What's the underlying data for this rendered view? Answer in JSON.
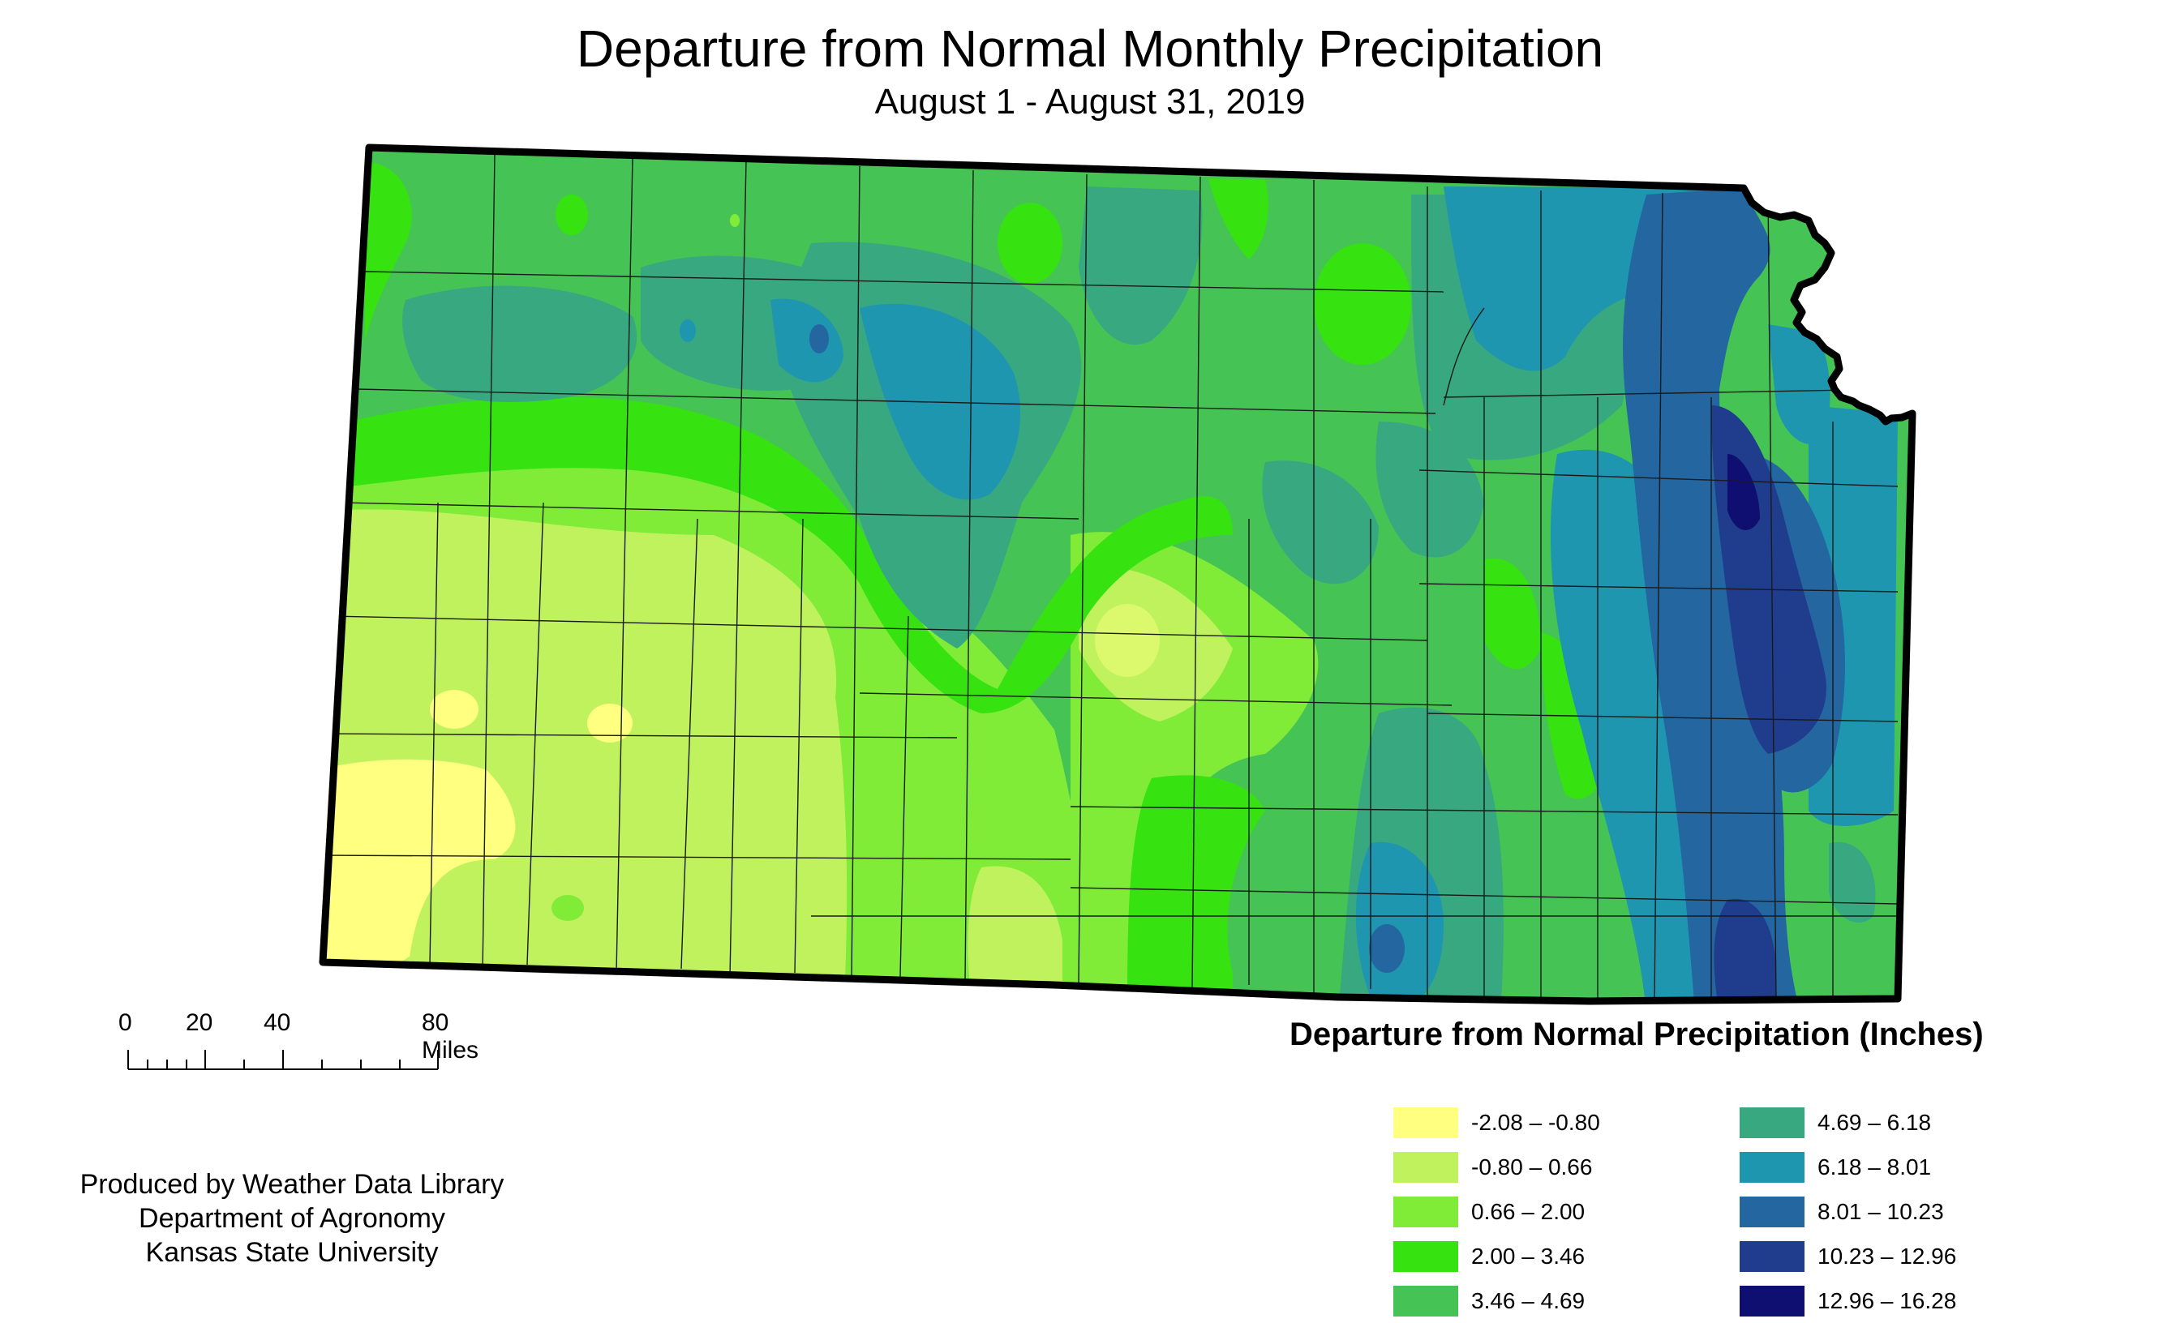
{
  "title": "Departure from Normal Monthly Precipitation",
  "subtitle": "August 1 - August 31, 2019",
  "legend": {
    "title": "Departure from Normal Precipitation (Inches)",
    "classes": [
      {
        "label": "-2.08 – -0.80",
        "color": "#ffff80"
      },
      {
        "label": "-0.80 – 0.66",
        "color": "#c0f25e"
      },
      {
        "label": "0.66 – 2.00",
        "color": "#80ec38"
      },
      {
        "label": "2.00 – 3.46",
        "color": "#36e210"
      },
      {
        "label": "3.46 – 4.69",
        "color": "#45c455"
      },
      {
        "label": "4.69 – 6.18",
        "color": "#38a880"
      },
      {
        "label": "6.18 – 8.01",
        "color": "#1f96b0"
      },
      {
        "label": "8.01 – 10.23",
        "color": "#2366a0"
      },
      {
        "label": "10.23 – 12.96",
        "color": "#203c8c"
      },
      {
        "label": "12.96 – 16.28",
        "color": "#0e0f70"
      }
    ]
  },
  "scale_bar": {
    "labels": [
      "0",
      "20",
      "40",
      "80 Miles"
    ]
  },
  "credits": {
    "line1": "Produced by Weather Data Library",
    "line2": "Department of Agronomy",
    "line3": "Kansas State University"
  }
}
